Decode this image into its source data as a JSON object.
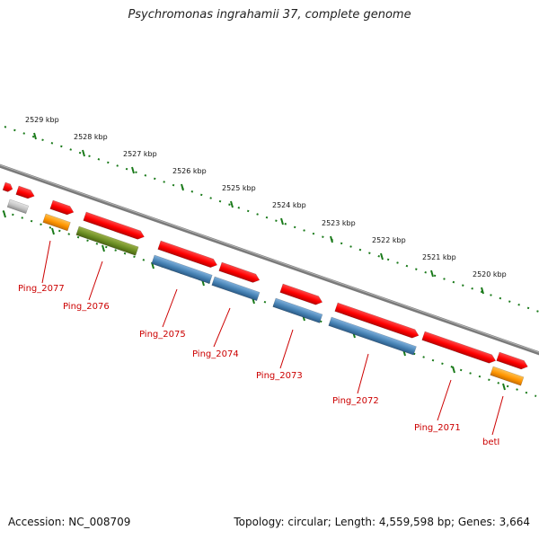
{
  "title": "Psychromonas ingrahamii 37, complete genome",
  "footer": {
    "accession": "Accession: NC_008709",
    "stats": "Topology: circular; Length: 4,559,598 bp; Genes: 3,664"
  },
  "colors": {
    "red": "#ff0000",
    "blue": "#4682b4",
    "green": "#6b8e23",
    "orange": "#ff9500",
    "gray": "#c2c2c2",
    "ruler": "#1a7a1a",
    "label": "#cc0000",
    "backbone": "#7a7a7a"
  },
  "ruler": {
    "labels": [
      "2529 kbp",
      "2528 kbp",
      "2527 kbp",
      "2526 kbp",
      "2525 kbp",
      "2524 kbp",
      "2523 kbp",
      "2522 kbp",
      "2521 kbp",
      "2520 kbp"
    ]
  },
  "gene_labels": [
    "Ping_2077",
    "Ping_2076",
    "Ping_2075",
    "Ping_2074",
    "Ping_2073",
    "Ping_2072",
    "Ping_2071",
    "betI"
  ]
}
